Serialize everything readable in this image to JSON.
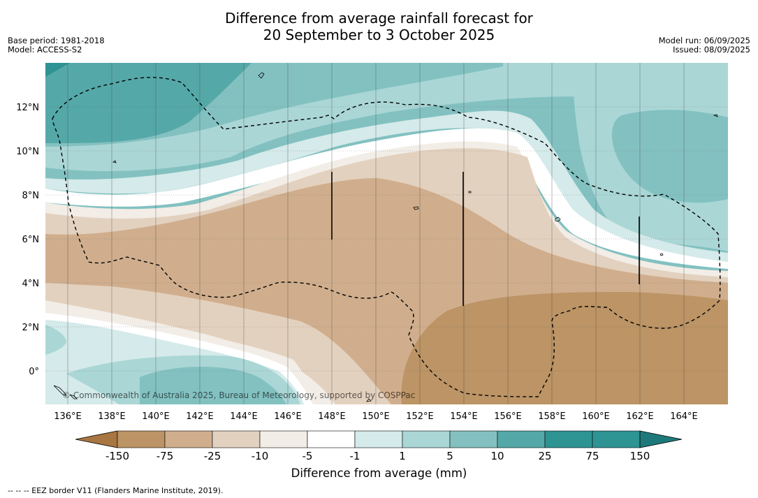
{
  "header": {
    "title_line1": "Difference from average rainfall forecast for",
    "title_line2": "20 September to 3 October 2025",
    "base_period": "Base period: 1981-2018",
    "model": "Model: ACCESS-S2",
    "model_run": "Model run: 06/09/2025",
    "issued": "Issued: 08/09/2025"
  },
  "map": {
    "lon_labels": [
      "136°E",
      "138°E",
      "140°E",
      "142°E",
      "144°E",
      "146°E",
      "148°E",
      "150°E",
      "152°E",
      "154°E",
      "156°E",
      "158°E",
      "160°E",
      "162°E",
      "164°E"
    ],
    "lat_labels": [
      "12°N",
      "10°N",
      "8°N",
      "6°N",
      "4°N",
      "2°N",
      "0°"
    ],
    "copyright": "© Commonwealth of Australia 2025, Bureau of Meteorology, supported by COSPPac"
  },
  "legend": {
    "title": "Difference from average (mm)",
    "ticks": [
      "-150",
      "-75",
      "-25",
      "-10",
      "-5",
      "-1",
      "1",
      "5",
      "10",
      "25",
      "75",
      "150"
    ],
    "colors": [
      "#a87640",
      "#bc9465",
      "#d0ae8d",
      "#e3d1bf",
      "#f2ede6",
      "#ffffff",
      "#d5eaea",
      "#abd6d6",
      "#83c1c1",
      "#55a8a8",
      "#2e9393",
      "#1e7a7a"
    ]
  },
  "footnote": "--  --  -- EEZ border V11 (Flanders Marine Institute, 2019)."
}
